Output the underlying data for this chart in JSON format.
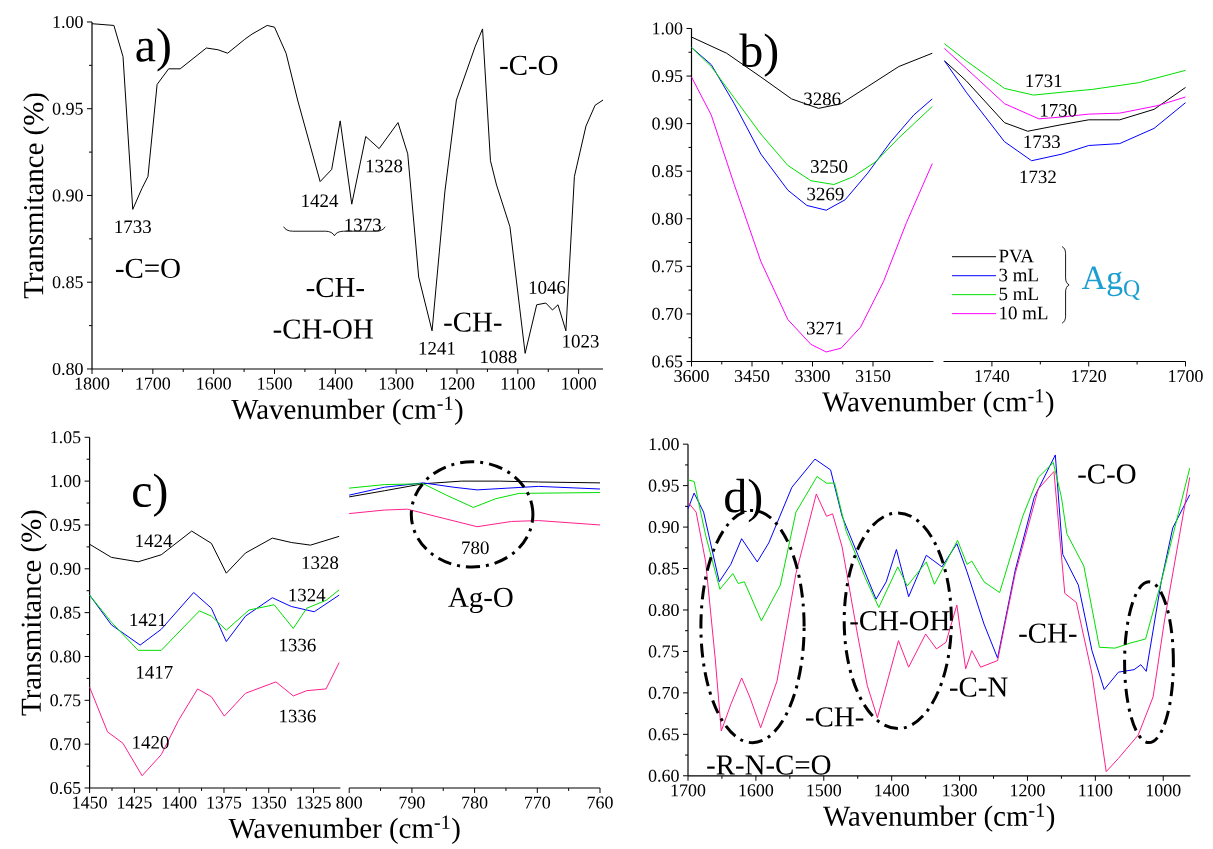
{
  "chart_data": [
    {
      "type": "line",
      "xlabel": "Wavenumber (cm$^{-1}$)",
      "ylabel": "Transmitance (%)",
      "xlim": [
        1800,
        960
      ],
      "ylim": [
        0.8,
        1.0
      ],
      "xticks": [
        1800,
        1700,
        1600,
        1500,
        1400,
        1300,
        1200,
        1100,
        1000
      ],
      "yticks": [
        {
          "value": 0.8,
          "label": "0.80"
        },
        {
          "value": 0.85,
          "label": "0.85"
        },
        {
          "value": 0.9,
          "label": "0.90"
        },
        {
          "value": 0.95,
          "label": "0.95"
        },
        {
          "value": 1.0,
          "label": "1.00"
        }
      ],
      "series": [
        {
          "color": "#000000",
          "x": [
            1800,
            1764,
            1749,
            1733,
            1718,
            1708,
            1693,
            1674,
            1655,
            1612,
            1593,
            1577,
            1549,
            1537,
            1512,
            1500,
            1481,
            1462,
            1425,
            1406,
            1392,
            1373,
            1350,
            1328,
            1297,
            1281,
            1263,
            1241,
            1220,
            1201,
            1170,
            1158,
            1145,
            1135,
            1113,
            1088,
            1069,
            1054,
            1043,
            1034,
            1021,
            1007,
            988,
            973,
            960
          ],
          "values": [
            0.999,
            0.998,
            0.98,
            0.892,
            0.904,
            0.911,
            0.964,
            0.973,
            0.973,
            0.985,
            0.984,
            0.982,
            0.99,
            0.993,
            0.998,
            0.997,
            0.982,
            0.955,
            0.908,
            0.915,
            0.943,
            0.895,
            0.934,
            0.927,
            0.942,
            0.924,
            0.853,
            0.822,
            0.902,
            0.955,
            0.986,
            0.996,
            0.92,
            0.906,
            0.882,
            0.809,
            0.837,
            0.838,
            0.834,
            0.837,
            0.822,
            0.911,
            0.94,
            0.952,
            0.955
          ]
        }
      ],
      "annotations": [
        "a)",
        "1733",
        "1424",
        "1373",
        "1328",
        "1241",
        "1088",
        "1046",
        "1023",
        "-C=O",
        "-CH-",
        "-CH-OH",
        "-CH-",
        "-C-O"
      ]
    },
    {
      "type": "line",
      "xlabel": "Wavenumber (cm$^{-1}$)",
      "xlim": [
        3600,
        3000
      ],
      "ylim": [
        0.65,
        1.0
      ],
      "xticks": [
        3600,
        3450,
        3300,
        3150
      ],
      "yticks": [
        {
          "value": 0.65,
          "label": "0.65"
        },
        {
          "value": 0.7,
          "label": "0.70"
        },
        {
          "value": 0.75,
          "label": "0.75"
        },
        {
          "value": 0.8,
          "label": "0.80"
        },
        {
          "value": 0.85,
          "label": "0.85"
        },
        {
          "value": 0.9,
          "label": "0.90"
        },
        {
          "value": 0.95,
          "label": "0.95"
        },
        {
          "value": 1.0,
          "label": "1.00"
        }
      ],
      "series": [
        {
          "color": "#000000",
          "x": [
            3600,
            3513,
            3428,
            3352,
            3285,
            3229,
            3163,
            3086,
            3003
          ],
          "values": [
            0.991,
            0.974,
            0.949,
            0.926,
            0.916,
            0.921,
            0.939,
            0.96,
            0.974
          ]
        },
        {
          "color": "#0000ff",
          "x": [
            3600,
            3551,
            3494,
            3428,
            3361,
            3314,
            3266,
            3219,
            3163,
            3106,
            3049,
            3003
          ],
          "values": [
            0.98,
            0.962,
            0.921,
            0.868,
            0.83,
            0.814,
            0.809,
            0.82,
            0.848,
            0.881,
            0.909,
            0.926
          ]
        },
        {
          "color": "#00e000",
          "x": [
            3600,
            3551,
            3494,
            3428,
            3361,
            3304,
            3247,
            3200,
            3143,
            3086,
            3003
          ],
          "values": [
            0.98,
            0.96,
            0.927,
            0.889,
            0.856,
            0.84,
            0.836,
            0.844,
            0.86,
            0.885,
            0.918
          ]
        },
        {
          "color": "#ff00ff",
          "x": [
            3600,
            3551,
            3494,
            3428,
            3361,
            3304,
            3266,
            3229,
            3181,
            3124,
            3067,
            3003
          ],
          "values": [
            0.949,
            0.909,
            0.836,
            0.755,
            0.694,
            0.668,
            0.66,
            0.664,
            0.686,
            0.734,
            0.796,
            0.858
          ]
        }
      ],
      "annotations": [
        "b)",
        "3286",
        "3250",
        "3269",
        "3271"
      ]
    },
    {
      "type": "line",
      "xlim": [
        1750,
        1700
      ],
      "ylim": [
        0.65,
        1.0
      ],
      "xticks": [
        1740,
        1720,
        1700
      ],
      "tick_labels": "x",
      "legend": "bottom left",
      "series": [
        {
          "name": "PVA",
          "color": "#000000",
          "x": [
            1749.8,
            1745.3,
            1737.4,
            1732.6,
            1725.5,
            1720,
            1713.6,
            1706.5,
            1700
          ],
          "values": [
            0.966,
            0.945,
            0.901,
            0.892,
            0.899,
            0.904,
            0.904,
            0.915,
            0.938
          ]
        },
        {
          "name": "3 mL",
          "color": "#0000ff",
          "x": [
            1749.8,
            1745.3,
            1737.4,
            1731.8,
            1725.5,
            1720,
            1713.6,
            1706.5,
            1700
          ],
          "values": [
            0.966,
            0.933,
            0.881,
            0.861,
            0.868,
            0.877,
            0.879,
            0.895,
            0.922
          ]
        },
        {
          "name": "5 mL",
          "color": "#00e000",
          "x": [
            1749.8,
            1745.3,
            1737.4,
            1731.4,
            1725.5,
            1719.2,
            1709.7,
            1700
          ],
          "values": [
            0.984,
            0.966,
            0.937,
            0.93,
            0.933,
            0.936,
            0.943,
            0.956
          ]
        },
        {
          "name": "10 mL",
          "color": "#ff00ff",
          "x": [
            1749.8,
            1745.3,
            1737.4,
            1730.3,
            1725.5,
            1720,
            1713.6,
            1705.7,
            1700
          ],
          "values": [
            0.979,
            0.958,
            0.921,
            0.905,
            0.907,
            0.91,
            0.911,
            0.919,
            0.928
          ]
        }
      ],
      "annotations": [
        "1731",
        "1730",
        "1733",
        "1732",
        "Ag$_{Q}$"
      ]
    },
    {
      "type": "line",
      "xlabel": "Wavenumber (cm$^{-1}$)",
      "ylabel": "Transmitance (%)",
      "xlim": [
        1450,
        1310
      ],
      "ylim": [
        0.65,
        1.05
      ],
      "xticks": [
        1450,
        1425,
        1400,
        1375,
        1350,
        1325
      ],
      "yticks": [
        {
          "value": 0.65,
          "label": "0.65"
        },
        {
          "value": 0.7,
          "label": "0.70"
        },
        {
          "value": 0.75,
          "label": "0.75"
        },
        {
          "value": 0.8,
          "label": "0.80"
        },
        {
          "value": 0.85,
          "label": "0.85"
        },
        {
          "value": 0.9,
          "label": "0.90"
        },
        {
          "value": 0.95,
          "label": "0.95"
        },
        {
          "value": 1.0,
          "label": "1.00"
        },
        {
          "value": 1.05,
          "label": "1.05"
        }
      ],
      "series": [
        {
          "color": "#000000",
          "x": [
            1450,
            1437.8,
            1422.9,
            1410,
            1393,
            1382,
            1373.7,
            1363,
            1348,
            1337.4,
            1326.7,
            1310.7
          ],
          "values": [
            0.928,
            0.913,
            0.908,
            0.916,
            0.943,
            0.929,
            0.895,
            0.918,
            0.935,
            0.93,
            0.927,
            0.937
          ]
        },
        {
          "color": "#0000ff",
          "x": [
            1450,
            1437.8,
            1421.8,
            1410,
            1391.9,
            1382,
            1373.7,
            1363,
            1348,
            1337.4,
            1324.6,
            1310.7
          ],
          "values": [
            0.87,
            0.836,
            0.813,
            0.831,
            0.873,
            0.855,
            0.817,
            0.846,
            0.867,
            0.857,
            0.851,
            0.87
          ]
        },
        {
          "color": "#00e000",
          "x": [
            1450,
            1437.8,
            1422.9,
            1410,
            1388.7,
            1382,
            1373.7,
            1361,
            1347,
            1336.3,
            1328.8,
            1318,
            1310.7
          ],
          "values": [
            0.87,
            0.839,
            0.807,
            0.807,
            0.852,
            0.846,
            0.83,
            0.853,
            0.859,
            0.832,
            0.855,
            0.864,
            0.876
          ]
        },
        {
          "color": "#ff1e8c",
          "x": [
            1450,
            1440,
            1431.4,
            1420.7,
            1410,
            1400.4,
            1389.7,
            1382,
            1374.8,
            1363,
            1346,
            1336.3,
            1328.8,
            1318,
            1310.7
          ],
          "values": [
            0.765,
            0.714,
            0.701,
            0.664,
            0.688,
            0.727,
            0.763,
            0.754,
            0.732,
            0.758,
            0.771,
            0.755,
            0.761,
            0.763,
            0.793
          ]
        }
      ],
      "annotations": [
        "c)",
        "1424",
        "1328",
        "1421",
        "1324",
        "1417",
        "1336",
        "1336",
        "1420"
      ]
    },
    {
      "type": "line",
      "xlim": [
        800,
        760
      ],
      "ylim": [
        0.65,
        1.05
      ],
      "xticks": [
        800,
        790,
        780,
        770,
        760
      ],
      "tick_labels": "x",
      "series": [
        {
          "color": "#000000",
          "x": [
            800,
            794.4,
            788.2,
            782.1,
            776,
            769.8,
            760
          ],
          "values": [
            0.982,
            0.989,
            0.997,
            1.0,
            1.0,
            0.999,
            0.998
          ]
        },
        {
          "color": "#0000ff",
          "x": [
            800,
            794.4,
            788.2,
            783.3,
            779.6,
            774.7,
            769.8,
            760
          ],
          "values": [
            0.984,
            0.993,
            0.998,
            0.993,
            0.99,
            0.992,
            0.994,
            0.991
          ]
        },
        {
          "color": "#00e000",
          "x": [
            800,
            794.4,
            788.2,
            784.5,
            780.2,
            776.6,
            772.9,
            760
          ],
          "values": [
            0.992,
            0.996,
            0.997,
            0.984,
            0.97,
            0.98,
            0.986,
            0.987
          ]
        },
        {
          "color": "#ff1e8c",
          "x": [
            800,
            794.4,
            790.7,
            785.2,
            779.6,
            774.1,
            769.8,
            760
          ],
          "values": [
            0.963,
            0.967,
            0.968,
            0.958,
            0.948,
            0.954,
            0.955,
            0.95
          ]
        }
      ],
      "annotations": [
        "780",
        "Ag-O"
      ]
    },
    {
      "type": "line",
      "xlabel": "Wavenumber (cm$^{-1}$)",
      "xlim": [
        1700,
        960
      ],
      "ylim": [
        0.6,
        1.0
      ],
      "xticks": [
        1700,
        1600,
        1500,
        1400,
        1300,
        1200,
        1100,
        1000
      ],
      "yticks": [
        {
          "value": 0.6,
          "label": "0.60"
        },
        {
          "value": 0.65,
          "label": "0.65"
        },
        {
          "value": 0.7,
          "label": "0.70"
        },
        {
          "value": 0.75,
          "label": "0.75"
        },
        {
          "value": 0.8,
          "label": "0.80"
        },
        {
          "value": 0.85,
          "label": "0.85"
        },
        {
          "value": 0.9,
          "label": "0.90"
        },
        {
          "value": 0.95,
          "label": "0.95"
        },
        {
          "value": 1.0,
          "label": "1.00"
        }
      ],
      "series": [
        {
          "color": "#0000ff",
          "x": [
            1700,
            1691,
            1677,
            1654,
            1637,
            1621,
            1598,
            1581,
            1547,
            1513,
            1490,
            1473,
            1450,
            1423,
            1408,
            1393,
            1375,
            1349,
            1326,
            1304,
            1289,
            1264,
            1244,
            1218,
            1190,
            1159,
            1148,
            1125,
            1105,
            1087,
            1066,
            1043,
            1033,
            1025,
            1003,
            986,
            961
          ],
          "values": [
            0.922,
            0.941,
            0.918,
            0.834,
            0.855,
            0.886,
            0.858,
            0.881,
            0.948,
            0.982,
            0.969,
            0.913,
            0.867,
            0.813,
            0.834,
            0.873,
            0.816,
            0.866,
            0.852,
            0.88,
            0.846,
            0.783,
            0.742,
            0.848,
            0.936,
            0.987,
            0.867,
            0.83,
            0.751,
            0.704,
            0.725,
            0.728,
            0.734,
            0.726,
            0.834,
            0.899,
            0.939
          ]
        },
        {
          "color": "#00e000",
          "x": [
            1700,
            1691,
            1674,
            1653,
            1634,
            1626,
            1617,
            1592,
            1564,
            1541,
            1510,
            1496,
            1484,
            1467,
            1439,
            1419,
            1391,
            1377,
            1349,
            1337,
            1303,
            1289,
            1282,
            1264,
            1241,
            1207,
            1184,
            1162,
            1150,
            1142,
            1117,
            1094,
            1071,
            1049,
            1026,
            1003,
            961
          ],
          "values": [
            0.957,
            0.955,
            0.89,
            0.825,
            0.844,
            0.832,
            0.834,
            0.787,
            0.83,
            0.918,
            0.961,
            0.953,
            0.953,
            0.895,
            0.839,
            0.803,
            0.852,
            0.829,
            0.858,
            0.831,
            0.884,
            0.855,
            0.859,
            0.834,
            0.821,
            0.913,
            0.96,
            0.978,
            0.936,
            0.892,
            0.853,
            0.755,
            0.754,
            0.76,
            0.765,
            0.834,
            0.971
          ]
        },
        {
          "color": "#ff1e8c",
          "x": [
            1700,
            1688,
            1674,
            1660,
            1651,
            1637,
            1621,
            1609,
            1593,
            1569,
            1541,
            1511,
            1496,
            1487,
            1473,
            1450,
            1436,
            1421,
            1405,
            1390,
            1375,
            1350,
            1334,
            1320,
            1304,
            1291,
            1282,
            1269,
            1244,
            1218,
            1184,
            1161,
            1145,
            1128,
            1105,
            1084,
            1066,
            1037,
            1015,
            998,
            961
          ],
          "values": [
            0.93,
            0.918,
            0.858,
            0.742,
            0.654,
            0.686,
            0.718,
            0.695,
            0.658,
            0.714,
            0.844,
            0.94,
            0.913,
            0.916,
            0.876,
            0.769,
            0.709,
            0.67,
            0.718,
            0.763,
            0.731,
            0.771,
            0.753,
            0.761,
            0.806,
            0.729,
            0.751,
            0.731,
            0.739,
            0.844,
            0.946,
            0.967,
            0.82,
            0.809,
            0.723,
            0.605,
            0.621,
            0.649,
            0.695,
            0.788,
            0.96
          ]
        }
      ],
      "annotations": [
        "d)",
        "-C-O",
        "-CH-OH",
        "-CH-",
        "-C-N",
        "-CH-",
        "-R-N-C=O"
      ]
    }
  ]
}
